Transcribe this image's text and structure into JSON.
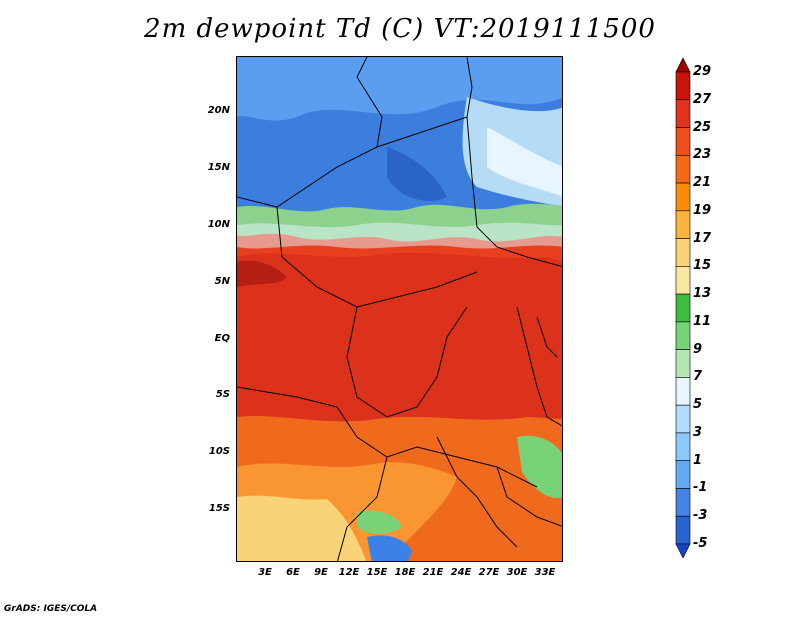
{
  "title": "2m dewpoint Td (C) VT:2019111500",
  "credit": "GrADS: IGES/COLA",
  "lat_ticks": [
    "20N",
    "15N",
    "10N",
    "5N",
    "EQ",
    "5S",
    "10S",
    "15S"
  ],
  "lon_ticks": [
    "3E",
    "6E",
    "9E",
    "12E",
    "15E",
    "18E",
    "21E",
    "24E",
    "27E",
    "30E",
    "33E"
  ],
  "colorbar": {
    "labels": [
      "29",
      "27",
      "25",
      "23",
      "21",
      "19",
      "17",
      "15",
      "13",
      "11",
      "9",
      "7",
      "5",
      "3",
      "1",
      "-1",
      "-3",
      "-5"
    ],
    "colors": [
      "#a00000",
      "#c8140a",
      "#e0321e",
      "#f0501e",
      "#f56a14",
      "#fa8c0a",
      "#fab43c",
      "#fad278",
      "#fae6a0",
      "#3cbe3c",
      "#78d278",
      "#b4e6b4",
      "#e6f5ff",
      "#b4dcff",
      "#8cc8ff",
      "#64aaf5",
      "#4682e6",
      "#2864d2",
      "#1446c8"
    ]
  },
  "map": {
    "region": "Central Africa",
    "variable": "2m dewpoint",
    "units": "C",
    "valid_time": "2019111500"
  }
}
